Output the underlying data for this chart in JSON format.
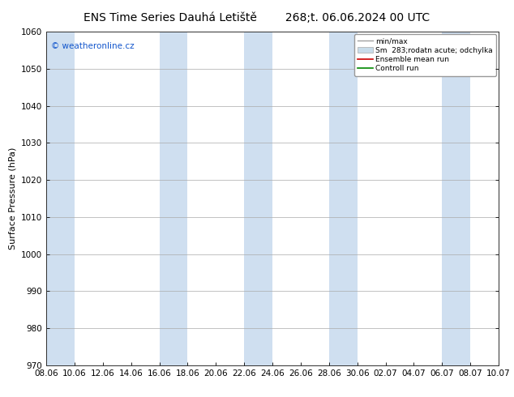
{
  "title": "ENS Time Series Dauhá Letiště",
  "title2": "268;t. 06.06.2024 00 UTC",
  "ylabel": "Surface Pressure (hPa)",
  "ylim": [
    970,
    1060
  ],
  "yticks": [
    970,
    980,
    990,
    1000,
    1010,
    1020,
    1030,
    1040,
    1050,
    1060
  ],
  "xlabels": [
    "08.06",
    "10.06",
    "12.06",
    "14.06",
    "16.06",
    "18.06",
    "20.06",
    "22.06",
    "24.06",
    "26.06",
    "28.06",
    "30.06",
    "02.07",
    "04.07",
    "06.07",
    "08.07",
    "10.07"
  ],
  "band_indices": [
    0,
    4,
    7,
    10,
    14
  ],
  "band_color": "#cfdff0",
  "background_color": "#ffffff",
  "watermark": "© weatheronline.cz",
  "legend_labels": [
    "min/max",
    "Sm  283;rodatn acute; odchylka",
    "Ensemble mean run",
    "Controll run"
  ],
  "legend_colors": [
    "#a0a0a0",
    "#c8dcea",
    "#cc0000",
    "#008800"
  ],
  "grid_color": "#aaaaaa",
  "spine_color": "#333333",
  "title_fontsize": 10,
  "label_fontsize": 8,
  "tick_fontsize": 7.5,
  "watermark_color": "#1155cc"
}
